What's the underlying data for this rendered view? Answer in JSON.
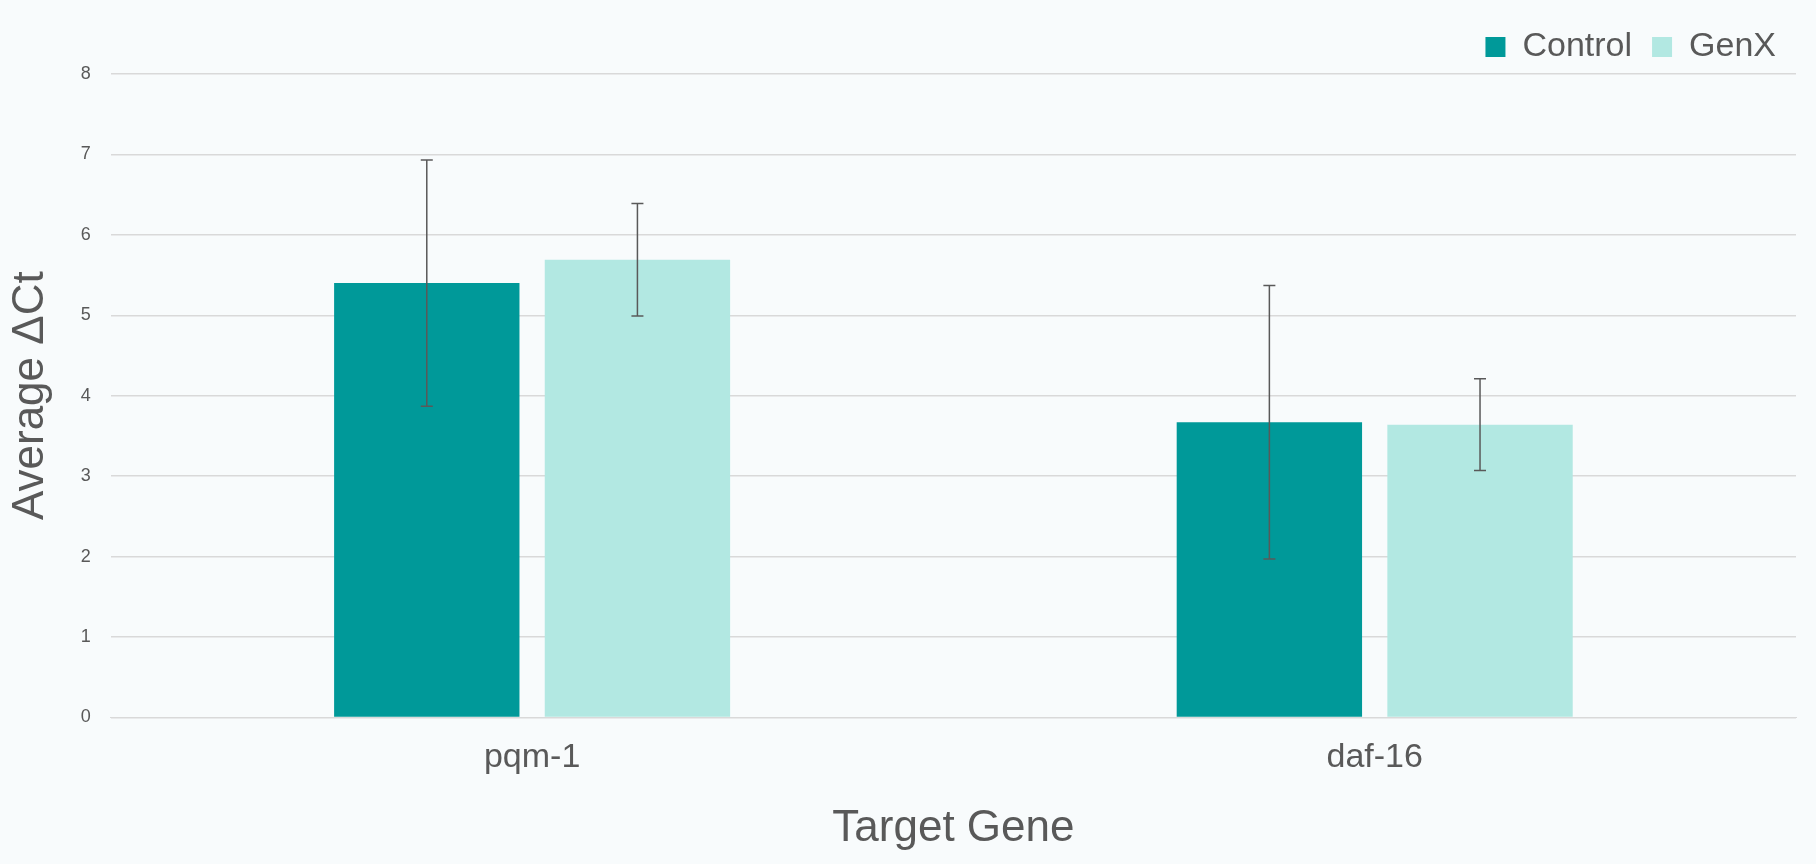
{
  "chart_data": {
    "type": "bar",
    "xlabel": "Target Gene",
    "ylabel": "Average ΔCt",
    "categories": [
      "pqm-1",
      "daf-16"
    ],
    "series": [
      {
        "name": "Control",
        "color": "#009999",
        "values": [
          5.4,
          3.67
        ],
        "errors": [
          1.53,
          1.7
        ]
      },
      {
        "name": "GenX",
        "color": "#b2e8e2",
        "values": [
          5.69,
          3.64
        ],
        "errors": [
          0.7,
          0.57
        ]
      }
    ],
    "ylim": [
      0,
      8
    ],
    "yticks": [
      0,
      1,
      2,
      3,
      4,
      5,
      6,
      7,
      8
    ],
    "grid": "y",
    "legend": "top right"
  }
}
